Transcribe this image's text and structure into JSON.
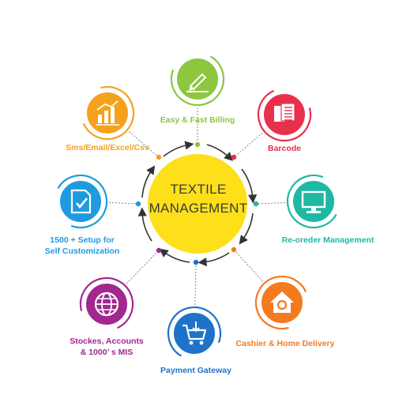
{
  "center": {
    "line1": "TEXTILE",
    "line2": "MANAGEMENT",
    "color": "#fde01a"
  },
  "nodes": [
    {
      "id": "billing",
      "label": "Easy & Fast Billing",
      "icon": "pen-icon",
      "color": "#8dc63f"
    },
    {
      "id": "barcode",
      "label": "Barcode",
      "icon": "document-icon",
      "color": "#e8304a"
    },
    {
      "id": "reorder",
      "label": "Re-oreder Management",
      "icon": "monitor-icon",
      "color": "#1fb8a3"
    },
    {
      "id": "cashier",
      "label": "Cashier &  Home  Delivery",
      "icon": "home-icon",
      "color": "#f47a20"
    },
    {
      "id": "payment",
      "label": "Payment Gateway",
      "icon": "cart-icon",
      "color": "#1f72c9"
    },
    {
      "id": "stockes",
      "label": "Stockes, Accounts\n& 1000’ s MIS",
      "icon": "globe-icon",
      "color": "#a2278f"
    },
    {
      "id": "setup",
      "label": "1500 + Setup for\nSelf Customization",
      "icon": "checklist-icon",
      "color": "#1e9be0"
    },
    {
      "id": "sms",
      "label": "Sms/Email/Excel/Csv",
      "icon": "bar-chart-icon",
      "color": "#f4a21e"
    }
  ]
}
